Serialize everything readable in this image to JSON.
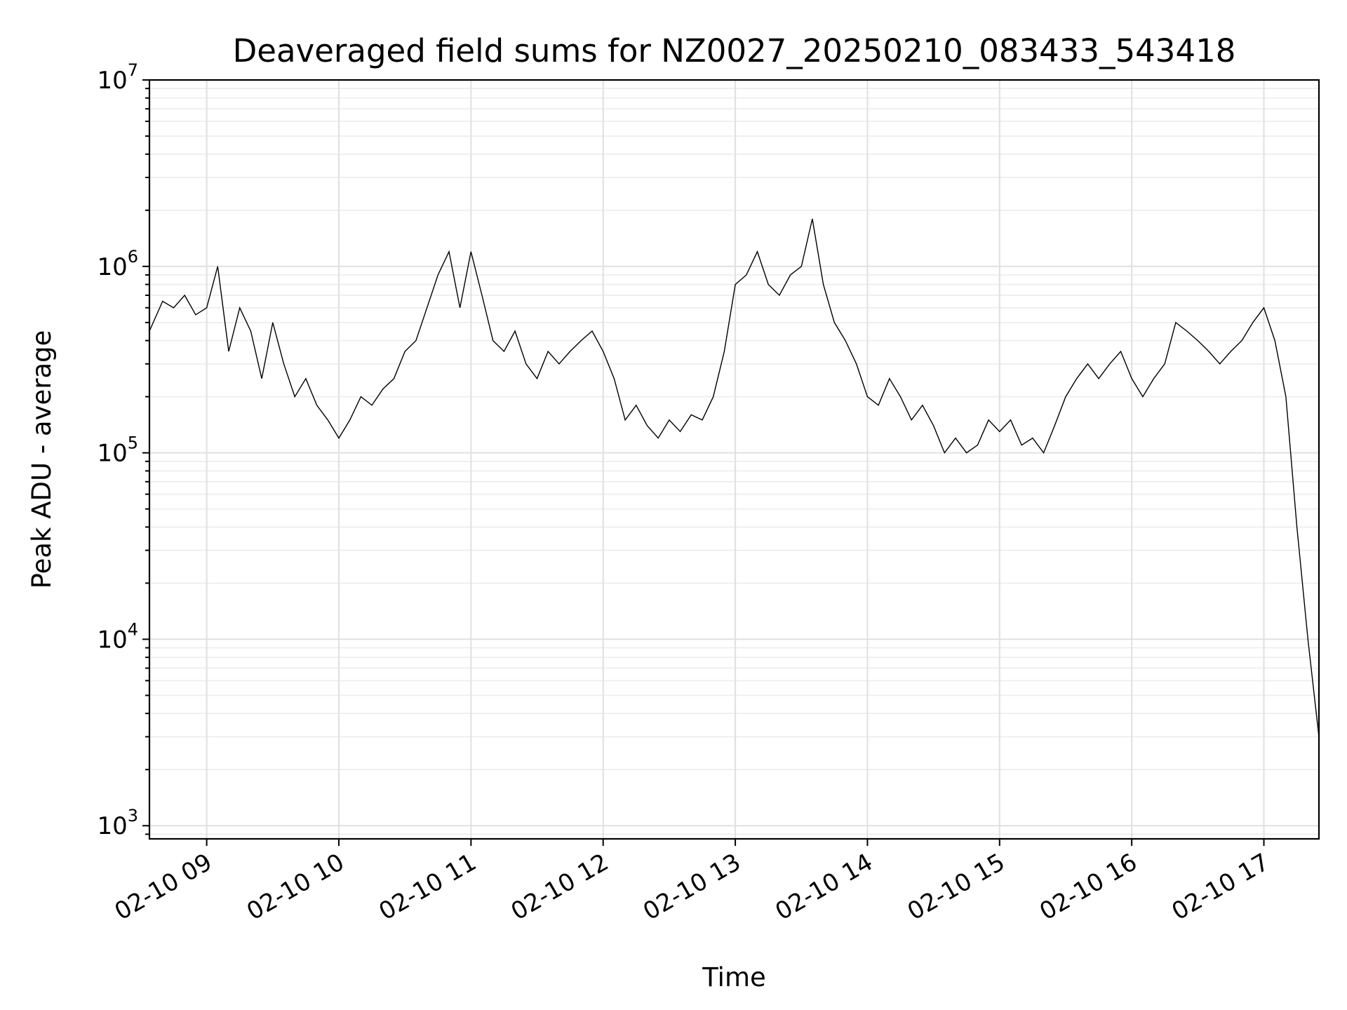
{
  "chart_data": {
    "type": "line",
    "title": "Deaveraged field sums for NZ0027_20250210_083433_543418",
    "xlabel": "Time",
    "ylabel": "Peak ADU - average",
    "yscale": "log",
    "ylim": [
      850,
      10000000
    ],
    "xlim": [
      "02-10 08:34",
      "02-10 17:25"
    ],
    "grid": true,
    "colors": {
      "line": "#000000",
      "grid": "#e0e0e0",
      "background": "#ffffff"
    },
    "x_ticks": [
      {
        "time": "02-10 09:00",
        "label": "02-10 09"
      },
      {
        "time": "02-10 10:00",
        "label": "02-10 10"
      },
      {
        "time": "02-10 11:00",
        "label": "02-10 11"
      },
      {
        "time": "02-10 12:00",
        "label": "02-10 12"
      },
      {
        "time": "02-10 13:00",
        "label": "02-10 13"
      },
      {
        "time": "02-10 14:00",
        "label": "02-10 14"
      },
      {
        "time": "02-10 15:00",
        "label": "02-10 15"
      },
      {
        "time": "02-10 16:00",
        "label": "02-10 16"
      },
      {
        "time": "02-10 17:00",
        "label": "02-10 17"
      }
    ],
    "y_ticks": [
      {
        "value": 1000,
        "base": "10",
        "exp": "3"
      },
      {
        "value": 10000,
        "base": "10",
        "exp": "4"
      },
      {
        "value": 100000,
        "base": "10",
        "exp": "5"
      },
      {
        "value": 1000000,
        "base": "10",
        "exp": "6"
      },
      {
        "value": 10000000,
        "base": "10",
        "exp": "7"
      }
    ],
    "series": [
      {
        "x": [
          "02-10 08:34",
          "02-10 08:40",
          "02-10 08:45",
          "02-10 08:50",
          "02-10 08:55",
          "02-10 09:00",
          "02-10 09:05",
          "02-10 09:10",
          "02-10 09:15",
          "02-10 09:20",
          "02-10 09:25",
          "02-10 09:30",
          "02-10 09:35",
          "02-10 09:40",
          "02-10 09:45",
          "02-10 09:50",
          "02-10 09:55",
          "02-10 10:00",
          "02-10 10:05",
          "02-10 10:10",
          "02-10 10:15",
          "02-10 10:20",
          "02-10 10:25",
          "02-10 10:30",
          "02-10 10:35",
          "02-10 10:40",
          "02-10 10:45",
          "02-10 10:50",
          "02-10 10:55",
          "02-10 11:00",
          "02-10 11:05",
          "02-10 11:10",
          "02-10 11:15",
          "02-10 11:20",
          "02-10 11:25",
          "02-10 11:30",
          "02-10 11:35",
          "02-10 11:40",
          "02-10 11:45",
          "02-10 11:50",
          "02-10 11:55",
          "02-10 12:00",
          "02-10 12:05",
          "02-10 12:10",
          "02-10 12:15",
          "02-10 12:20",
          "02-10 12:25",
          "02-10 12:30",
          "02-10 12:35",
          "02-10 12:40",
          "02-10 12:45",
          "02-10 12:50",
          "02-10 12:55",
          "02-10 13:00",
          "02-10 13:05",
          "02-10 13:10",
          "02-10 13:15",
          "02-10 13:20",
          "02-10 13:25",
          "02-10 13:30",
          "02-10 13:35",
          "02-10 13:40",
          "02-10 13:45",
          "02-10 13:50",
          "02-10 13:55",
          "02-10 14:00",
          "02-10 14:05",
          "02-10 14:10",
          "02-10 14:15",
          "02-10 14:20",
          "02-10 14:25",
          "02-10 14:30",
          "02-10 14:35",
          "02-10 14:40",
          "02-10 14:45",
          "02-10 14:50",
          "02-10 14:55",
          "02-10 15:00",
          "02-10 15:05",
          "02-10 15:10",
          "02-10 15:15",
          "02-10 15:20",
          "02-10 15:25",
          "02-10 15:30",
          "02-10 15:35",
          "02-10 15:40",
          "02-10 15:45",
          "02-10 15:50",
          "02-10 15:55",
          "02-10 16:00",
          "02-10 16:05",
          "02-10 16:10",
          "02-10 16:15",
          "02-10 16:20",
          "02-10 16:25",
          "02-10 16:30",
          "02-10 16:35",
          "02-10 16:40",
          "02-10 16:45",
          "02-10 16:50",
          "02-10 16:55",
          "02-10 17:00",
          "02-10 17:05",
          "02-10 17:10",
          "02-10 17:15",
          "02-10 17:20",
          "02-10 17:25"
        ],
        "y": [
          450000,
          650000,
          600000,
          700000,
          550000,
          600000,
          1000000,
          350000,
          600000,
          450000,
          250000,
          500000,
          300000,
          200000,
          250000,
          180000,
          150000,
          120000,
          150000,
          200000,
          180000,
          220000,
          250000,
          350000,
          400000,
          600000,
          900000,
          1200000,
          600000,
          1200000,
          700000,
          400000,
          350000,
          450000,
          300000,
          250000,
          350000,
          300000,
          350000,
          400000,
          450000,
          350000,
          250000,
          150000,
          180000,
          140000,
          120000,
          150000,
          130000,
          160000,
          150000,
          200000,
          350000,
          800000,
          900000,
          1200000,
          800000,
          700000,
          900000,
          1000000,
          1800000,
          800000,
          500000,
          400000,
          300000,
          200000,
          180000,
          250000,
          200000,
          150000,
          180000,
          140000,
          100000,
          120000,
          100000,
          110000,
          150000,
          130000,
          150000,
          110000,
          120000,
          100000,
          140000,
          200000,
          250000,
          300000,
          250000,
          300000,
          350000,
          250000,
          200000,
          250000,
          300000,
          500000,
          450000,
          400000,
          350000,
          300000,
          350000,
          400000,
          500000,
          600000,
          400000,
          200000,
          40000,
          10000,
          3000
        ]
      }
    ]
  }
}
